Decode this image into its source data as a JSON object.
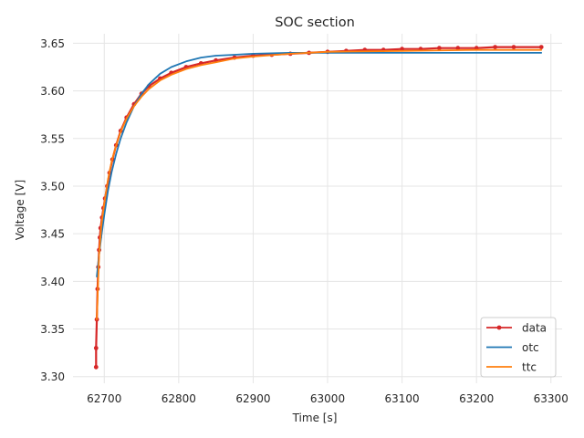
{
  "chart_data": {
    "type": "line",
    "title": "SOC section",
    "xlabel": "Time [s]",
    "ylabel": "Voltage [V]",
    "xlim": [
      62658,
      63315
    ],
    "ylim": [
      3.293,
      3.66
    ],
    "xticks": [
      62700,
      62800,
      62900,
      63000,
      63100,
      63200,
      63300
    ],
    "xtick_labels": [
      "62700",
      "62800",
      "62900",
      "63000",
      "63100",
      "63200",
      "63300"
    ],
    "yticks": [
      3.3,
      3.35,
      3.4,
      3.45,
      3.5,
      3.55,
      3.6,
      3.65
    ],
    "ytick_labels": [
      "3.30",
      "3.35",
      "3.40",
      "3.45",
      "3.50",
      "3.55",
      "3.60",
      "3.65"
    ],
    "grid": true,
    "legend_position": "bottom-right",
    "series": [
      {
        "name": "data",
        "color": "#d62728",
        "marker": "circle",
        "x": [
          62689,
          62689,
          62690,
          62691,
          62692,
          62693,
          62694,
          62695,
          62697,
          62699,
          62701,
          62704,
          62707,
          62711,
          62716,
          62722,
          62730,
          62740,
          62750,
          62760,
          62775,
          62790,
          62810,
          62830,
          62850,
          62875,
          62900,
          62925,
          62950,
          62975,
          63000,
          63025,
          63050,
          63075,
          63100,
          63125,
          63150,
          63175,
          63200,
          63225,
          63250,
          63287
        ],
        "y": [
          3.31,
          3.33,
          3.36,
          3.392,
          3.415,
          3.433,
          3.446,
          3.456,
          3.467,
          3.477,
          3.487,
          3.5,
          3.514,
          3.528,
          3.543,
          3.558,
          3.572,
          3.586,
          3.597,
          3.605,
          3.613,
          3.619,
          3.625,
          3.629,
          3.632,
          3.635,
          3.637,
          3.638,
          3.639,
          3.64,
          3.641,
          3.642,
          3.643,
          3.643,
          3.644,
          3.644,
          3.645,
          3.645,
          3.645,
          3.646,
          3.646,
          3.646
        ]
      },
      {
        "name": "otc",
        "color": "#1f77b4",
        "marker": "none",
        "x": [
          62690,
          62693,
          62696,
          62700,
          62705,
          62710,
          62716,
          62722,
          62730,
          62740,
          62750,
          62760,
          62775,
          62790,
          62810,
          62830,
          62850,
          62875,
          62900,
          62950,
          63000,
          63100,
          63200,
          63287
        ],
        "y": [
          3.405,
          3.428,
          3.447,
          3.47,
          3.495,
          3.515,
          3.534,
          3.55,
          3.567,
          3.584,
          3.597,
          3.607,
          3.618,
          3.625,
          3.631,
          3.635,
          3.637,
          3.638,
          3.639,
          3.64,
          3.64,
          3.64,
          3.64,
          3.64
        ]
      },
      {
        "name": "ttc",
        "color": "#ff7f0e",
        "marker": "none",
        "x": [
          62690,
          62693,
          62696,
          62700,
          62705,
          62710,
          62716,
          62722,
          62730,
          62740,
          62750,
          62760,
          62775,
          62790,
          62810,
          62830,
          62850,
          62875,
          62900,
          62950,
          63000,
          63100,
          63200,
          63287
        ],
        "y": [
          3.36,
          3.428,
          3.458,
          3.482,
          3.507,
          3.526,
          3.543,
          3.557,
          3.571,
          3.584,
          3.594,
          3.602,
          3.611,
          3.617,
          3.623,
          3.627,
          3.63,
          3.634,
          3.636,
          3.639,
          3.641,
          3.642,
          3.643,
          3.643
        ]
      }
    ]
  }
}
